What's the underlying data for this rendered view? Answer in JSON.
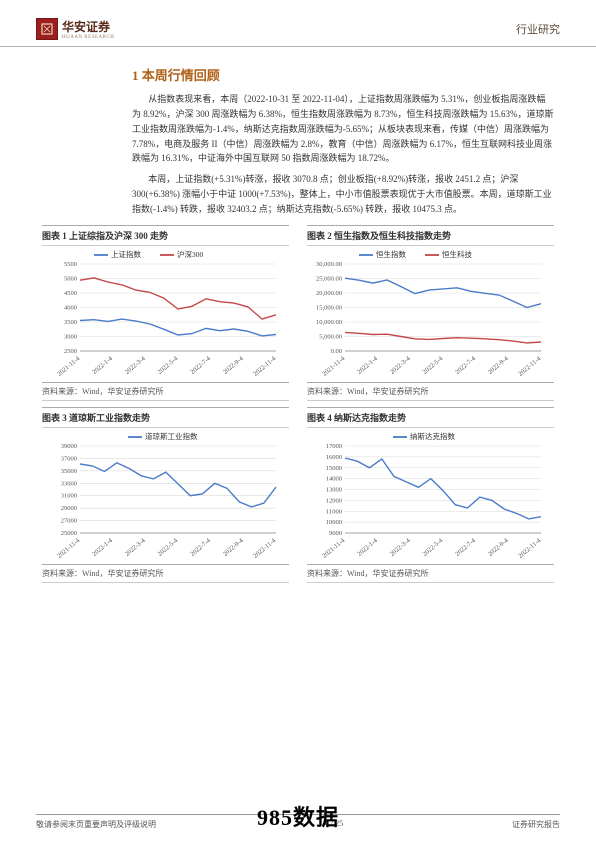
{
  "header": {
    "logo_text": "华安证券",
    "logo_sub": "HUAAN RESEARCH",
    "category": "行业研究"
  },
  "section_title": "1 本周行情回顾",
  "paragraphs": [
    "从指数表现来看，本周（2022-10-31 至 2022-11-04），上证指数周涨跌幅为 5.31%，创业板指周涨跌幅为 8.92%，沪深 300 周涨跌幅为 6.38%，恒生指数周涨跌幅为 8.73%，恒生科技周涨跌幅为 15.63%，道琼斯工业指数周涨跌幅为-1.4%，纳斯达克指数周涨跌幅为-5.65%；从板块表现来看，传媒（中信）周涨跌幅为 7.78%，电商及服务 II（中信）周涨跌幅为 2.8%，教育（中信）周涨跌幅为 6.17%，恒生互联网科技业周涨跌幅为 16.31%，中证海外中国互联网 50 指数周涨跌幅为 18.72%。",
    "本周，上证指数(+5.31%)转涨，报收 3070.8 点；创业板指(+8.92%)转涨，报收 2451.2 点；沪深 300(+6.38%) 涨幅小于中证 1000(+7.53%)，整体上，中小市值股票表现优于大市值股票。本周，道琼斯工业指数(-1.4%) 转跌，报收 32403.2 点；纳斯达克指数(-5.65%) 转跌，报收 10475.3 点。"
  ],
  "charts": [
    {
      "title": "图表 1 上证综指及沪深 300 走势",
      "source": "资料来源：Wind，华安证券研究所",
      "type": "line",
      "x_labels": [
        "2021-11-4",
        "2022-1-4",
        "2022-3-4",
        "2022-5-4",
        "2022-7-4",
        "2022-9-4",
        "2022-11-4"
      ],
      "ylim": [
        2500,
        5500
      ],
      "ytick_step": 500,
      "background_color": "#ffffff",
      "grid_color": "#d9d9d9",
      "series": [
        {
          "name": "上证指数",
          "color": "#4a7bc9",
          "values": [
            3550,
            3580,
            3520,
            3600,
            3530,
            3430,
            3250,
            3050,
            3100,
            3280,
            3200,
            3260,
            3180,
            3020,
            3070
          ]
        },
        {
          "name": "沪深300",
          "color": "#c44848",
          "values": [
            4940,
            5020,
            4880,
            4780,
            4600,
            4520,
            4320,
            3950,
            4040,
            4300,
            4200,
            4150,
            4020,
            3600,
            3750
          ]
        }
      ],
      "label_fontsize": 7,
      "tick_fontsize": 6.5
    },
    {
      "title": "图表 2 恒生指数及恒生科技指数走势",
      "source": "资料来源：Wind，华安证券研究所",
      "type": "line",
      "x_labels": [
        "2021-11-4",
        "2022-1-4",
        "2022-3-4",
        "2022-5-4",
        "2022-7-4",
        "2022-9-4",
        "2022-11-4"
      ],
      "ylim": [
        0,
        30000
      ],
      "ytick_step": 5000,
      "y_format": "comma2",
      "background_color": "#ffffff",
      "grid_color": "#d9d9d9",
      "series": [
        {
          "name": "恒生指数",
          "color": "#4a7bc9",
          "values": [
            25100,
            24400,
            23400,
            24500,
            22200,
            19800,
            21000,
            21400,
            21800,
            20600,
            19900,
            19300,
            17200,
            15000,
            16300
          ]
        },
        {
          "name": "恒生科技",
          "color": "#c44848",
          "values": [
            6400,
            6100,
            5700,
            5800,
            5000,
            4200,
            4000,
            4300,
            4600,
            4400,
            4200,
            3900,
            3400,
            2800,
            3100
          ]
        }
      ],
      "label_fontsize": 7,
      "tick_fontsize": 6.5
    },
    {
      "title": "图表 3 道琼斯工业指数走势",
      "source": "资料来源：Wind，华安证券研究所",
      "type": "line",
      "x_labels": [
        "2021-11-4",
        "2022-1-4",
        "2022-3-4",
        "2022-5-4",
        "2022-7-4",
        "2022-9-4",
        "2022-11-4"
      ],
      "ylim": [
        25000,
        39000
      ],
      "ytick_step": 2000,
      "background_color": "#ffffff",
      "grid_color": "#d9d9d9",
      "series": [
        {
          "name": "道琼斯工业指数",
          "color": "#4a7bc9",
          "values": [
            36100,
            35800,
            34900,
            36300,
            35400,
            34200,
            33700,
            34800,
            32900,
            31000,
            31300,
            33000,
            32200,
            30000,
            29200,
            29800,
            32400
          ]
        }
      ],
      "label_fontsize": 7,
      "tick_fontsize": 6.5
    },
    {
      "title": "图表 4 纳斯达克指数走势",
      "source": "资料来源：Wind，华安证券研究所",
      "type": "line",
      "x_labels": [
        "2021-11-4",
        "2022-1-4",
        "2022-3-4",
        "2022-5-4",
        "2022-7-4",
        "2022-9-4",
        "2022-11-4"
      ],
      "ylim": [
        9000,
        17000
      ],
      "ytick_step": 1000,
      "background_color": "#ffffff",
      "grid_color": "#d9d9d9",
      "series": [
        {
          "name": "纳斯达克指数",
          "color": "#4a7bc9",
          "values": [
            15900,
            15600,
            15000,
            15800,
            14200,
            13700,
            13200,
            14000,
            12900,
            11600,
            11300,
            12300,
            12000,
            11200,
            10800,
            10300,
            10500
          ]
        }
      ],
      "label_fontsize": 7,
      "tick_fontsize": 6.5
    }
  ],
  "footer": {
    "left": "敬请参阅末页重要声明及评级说明",
    "center": "6 / 25",
    "right": "证券研究报告"
  },
  "watermark": "985数据"
}
